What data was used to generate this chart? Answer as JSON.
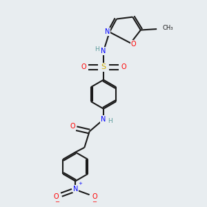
{
  "background_color": "#e8edf0",
  "bond_color": "#1a1a1a",
  "atom_colors": {
    "N": "#0000ff",
    "O": "#ff0000",
    "S": "#ccaa00",
    "H": "#5a9a9a",
    "C": "#1a1a1a"
  },
  "figsize": [
    3.0,
    3.0
  ],
  "dpi": 100,
  "lw": 1.5,
  "fs": 7.0
}
